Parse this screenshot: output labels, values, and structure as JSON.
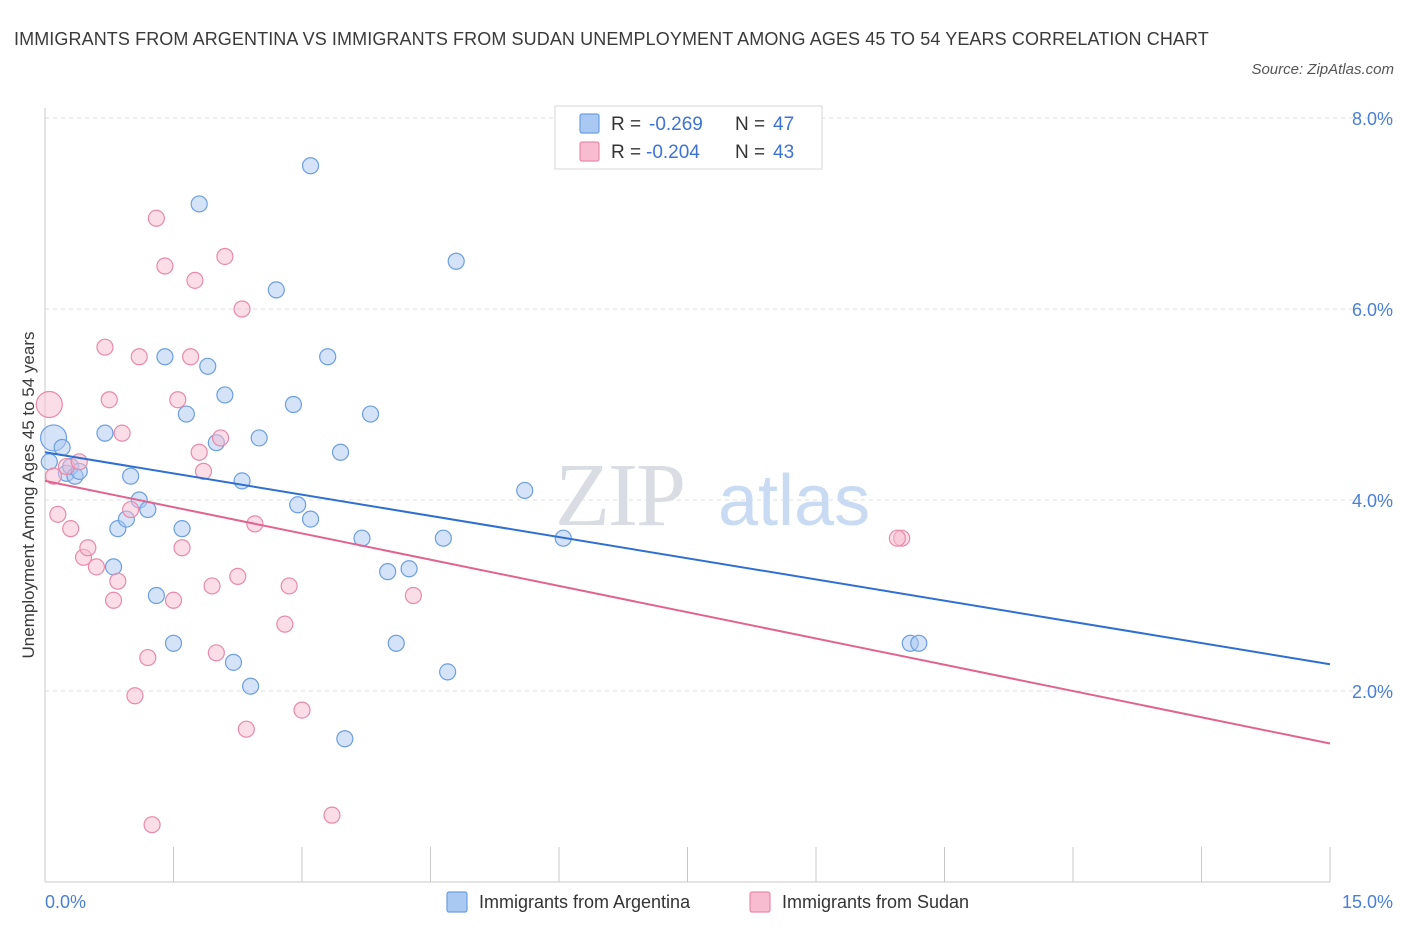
{
  "title": "IMMIGRANTS FROM ARGENTINA VS IMMIGRANTS FROM SUDAN UNEMPLOYMENT AMONG AGES 45 TO 54 YEARS CORRELATION CHART",
  "source": "Source: ZipAtlas.com",
  "watermark": {
    "zip": "ZIP",
    "atlas": "atlas"
  },
  "legend": {
    "r_label": "R =",
    "n_label": "N =",
    "entries": [
      {
        "r": "-0.269",
        "n": "47",
        "color": "#a9c8f2",
        "stroke": "#6d9ee0"
      },
      {
        "r": "-0.204",
        "n": "43",
        "color": "#f7bcd0",
        "stroke": "#e88aaa"
      }
    ]
  },
  "chart_data": {
    "type": "scatter",
    "ylabel": "Unemployment Among Ages 45 to 54 years",
    "xlim": [
      0,
      15
    ],
    "ylim": [
      0,
      8
    ],
    "x_ticks": [
      "0.0%",
      "15.0%"
    ],
    "y_ticks": [
      {
        "value": 2,
        "label": "2.0%"
      },
      {
        "value": 4,
        "label": "4.0%"
      },
      {
        "value": 6,
        "label": "6.0%"
      },
      {
        "value": 8,
        "label": "8.0%"
      }
    ],
    "grid": "horizontal dashed",
    "legend_position": "top-center",
    "series": [
      {
        "name": "Immigrants from Argentina",
        "color": "#a9c8f2",
        "stroke": "#6d9ee0",
        "line_color": "#2f6fd0",
        "trend": [
          [
            0,
            4.5
          ],
          [
            15,
            2.28
          ]
        ],
        "points": [
          [
            0.05,
            4.4
          ],
          [
            0.1,
            4.65
          ],
          [
            0.2,
            4.55
          ],
          [
            0.25,
            4.28
          ],
          [
            0.3,
            4.35
          ],
          [
            0.35,
            4.25
          ],
          [
            0.4,
            4.3
          ],
          [
            0.7,
            4.7
          ],
          [
            0.85,
            3.7
          ],
          [
            0.95,
            3.8
          ],
          [
            1.0,
            4.25
          ],
          [
            0.8,
            3.3
          ],
          [
            1.1,
            4.0
          ],
          [
            1.2,
            3.9
          ],
          [
            1.3,
            3.0
          ],
          [
            1.4,
            5.5
          ],
          [
            1.5,
            2.5
          ],
          [
            1.6,
            3.7
          ],
          [
            1.65,
            4.9
          ],
          [
            1.8,
            7.1
          ],
          [
            1.9,
            5.4
          ],
          [
            2.0,
            4.6
          ],
          [
            2.1,
            5.1
          ],
          [
            2.2,
            2.3
          ],
          [
            2.3,
            4.2
          ],
          [
            2.4,
            2.05
          ],
          [
            2.5,
            4.65
          ],
          [
            2.7,
            6.2
          ],
          [
            2.9,
            5.0
          ],
          [
            2.95,
            3.95
          ],
          [
            3.1,
            3.8
          ],
          [
            3.1,
            7.5
          ],
          [
            3.3,
            5.5
          ],
          [
            3.45,
            4.5
          ],
          [
            3.5,
            1.5
          ],
          [
            3.7,
            3.6
          ],
          [
            3.8,
            4.9
          ],
          [
            4.0,
            3.25
          ],
          [
            4.1,
            2.5
          ],
          [
            4.25,
            3.28
          ],
          [
            4.65,
            3.6
          ],
          [
            4.7,
            2.2
          ],
          [
            4.8,
            6.5
          ],
          [
            5.6,
            4.1
          ],
          [
            6.05,
            3.6
          ],
          [
            10.1,
            2.5
          ],
          [
            10.2,
            2.5
          ]
        ]
      },
      {
        "name": "Immigrants from Sudan",
        "color": "#f7bcd0",
        "stroke": "#e88aaa",
        "line_color": "#e0648f",
        "trend": [
          [
            0,
            4.2
          ],
          [
            15,
            1.45
          ]
        ],
        "points": [
          [
            0.05,
            5.0
          ],
          [
            0.1,
            4.25
          ],
          [
            0.15,
            3.85
          ],
          [
            0.25,
            4.35
          ],
          [
            0.3,
            3.7
          ],
          [
            0.4,
            4.4
          ],
          [
            0.45,
            3.4
          ],
          [
            0.5,
            3.5
          ],
          [
            0.6,
            3.3
          ],
          [
            0.7,
            5.6
          ],
          [
            0.75,
            5.05
          ],
          [
            0.8,
            2.95
          ],
          [
            0.85,
            3.15
          ],
          [
            0.9,
            4.7
          ],
          [
            1.0,
            3.9
          ],
          [
            1.05,
            1.95
          ],
          [
            1.1,
            5.5
          ],
          [
            1.2,
            2.35
          ],
          [
            1.25,
            0.6
          ],
          [
            1.3,
            6.95
          ],
          [
            1.4,
            6.45
          ],
          [
            1.5,
            2.95
          ],
          [
            1.55,
            5.05
          ],
          [
            1.6,
            3.5
          ],
          [
            1.7,
            5.5
          ],
          [
            1.75,
            6.3
          ],
          [
            1.8,
            4.5
          ],
          [
            1.85,
            4.3
          ],
          [
            1.95,
            3.1
          ],
          [
            2.0,
            2.4
          ],
          [
            2.05,
            4.65
          ],
          [
            2.1,
            6.55
          ],
          [
            2.25,
            3.2
          ],
          [
            2.3,
            6.0
          ],
          [
            2.35,
            1.6
          ],
          [
            2.45,
            3.75
          ],
          [
            2.8,
            2.7
          ],
          [
            2.85,
            3.1
          ],
          [
            3.0,
            1.8
          ],
          [
            3.35,
            0.7
          ],
          [
            4.3,
            3.0
          ],
          [
            10.0,
            3.6
          ],
          [
            9.95,
            3.6
          ]
        ]
      }
    ]
  }
}
